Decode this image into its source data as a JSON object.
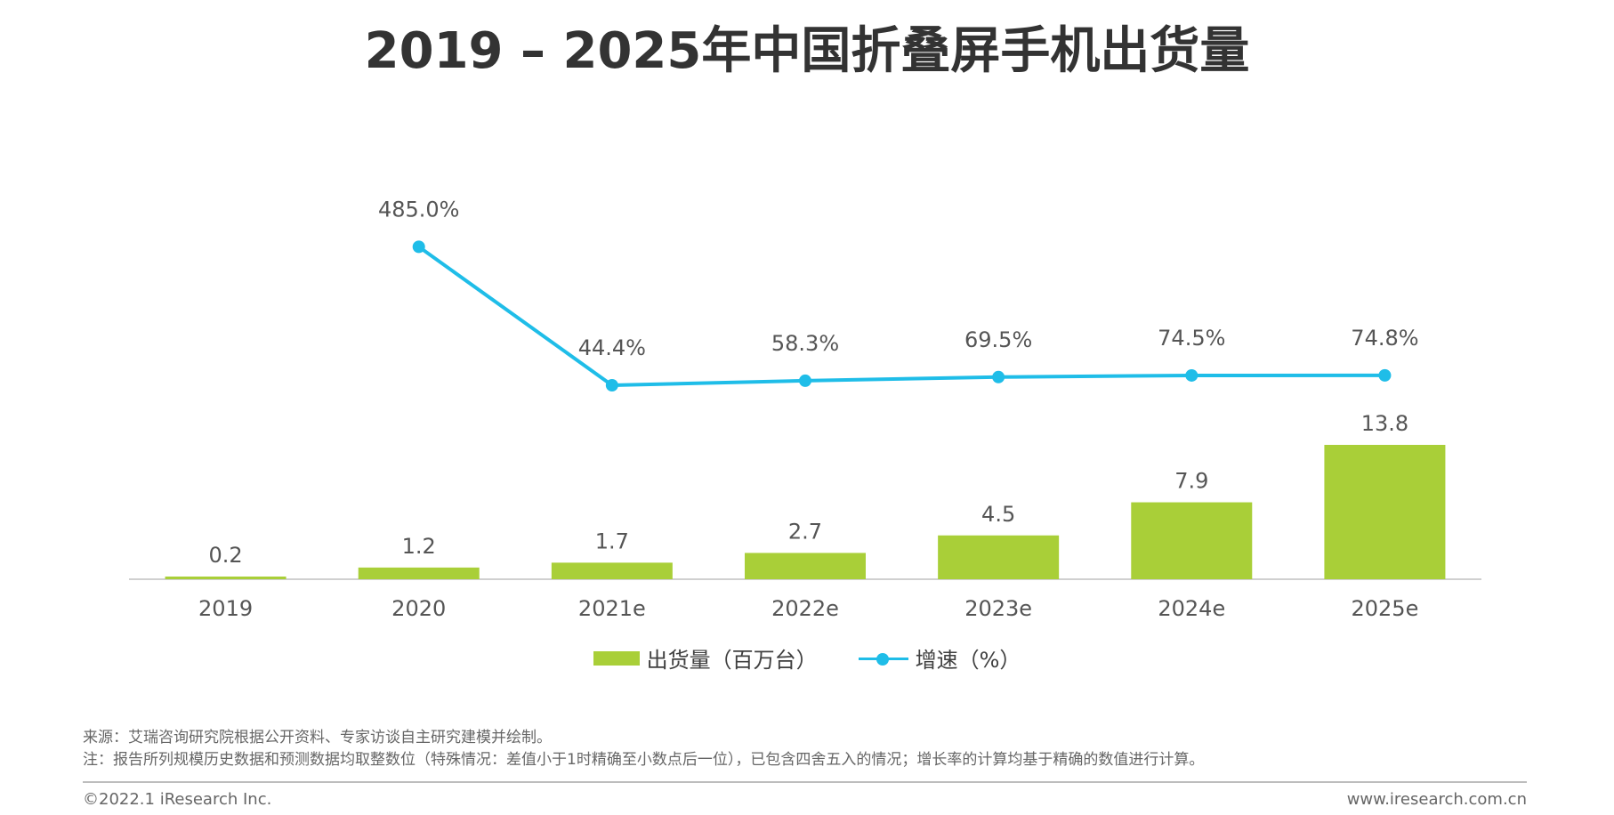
{
  "chart_data": {
    "type": "bar",
    "title": "2019 – 2025年中国折叠屏手机出货量",
    "categories": [
      "2019",
      "2020",
      "2021e",
      "2022e",
      "2023e",
      "2024e",
      "2025e"
    ],
    "series": [
      {
        "name": "出货量（百万台）",
        "type": "bar",
        "values": [
          0.2,
          1.2,
          1.7,
          2.7,
          4.5,
          7.9,
          13.8
        ],
        "labels": [
          "0.2",
          "1.2",
          "1.7",
          "2.7",
          "4.5",
          "7.9",
          "13.8"
        ],
        "color": "#a9cf38"
      },
      {
        "name": "增速（%）",
        "type": "line",
        "values": [
          null,
          485.0,
          44.4,
          58.3,
          69.5,
          74.5,
          74.8
        ],
        "labels": [
          "",
          "485.0%",
          "44.4%",
          "58.3%",
          "69.5%",
          "74.5%",
          "74.8%"
        ],
        "color": "#1fbde8"
      }
    ],
    "legend": "bottom-center",
    "grid": false
  },
  "source_note": "来源：艾瑞咨询研究院根据公开资料、专家访谈自主研究建模并绘制。",
  "method_note": "注：报告所列规模历史数据和预测数据均取整数位（特殊情况：差值小于1时精确至小数点后一位），已包含四舍五入的情况；增长率的计算均基于精确的数值进行计算。",
  "footer": {
    "copyright": "©2022.1 iResearch Inc.",
    "url": "www.iresearch.com.cn"
  }
}
